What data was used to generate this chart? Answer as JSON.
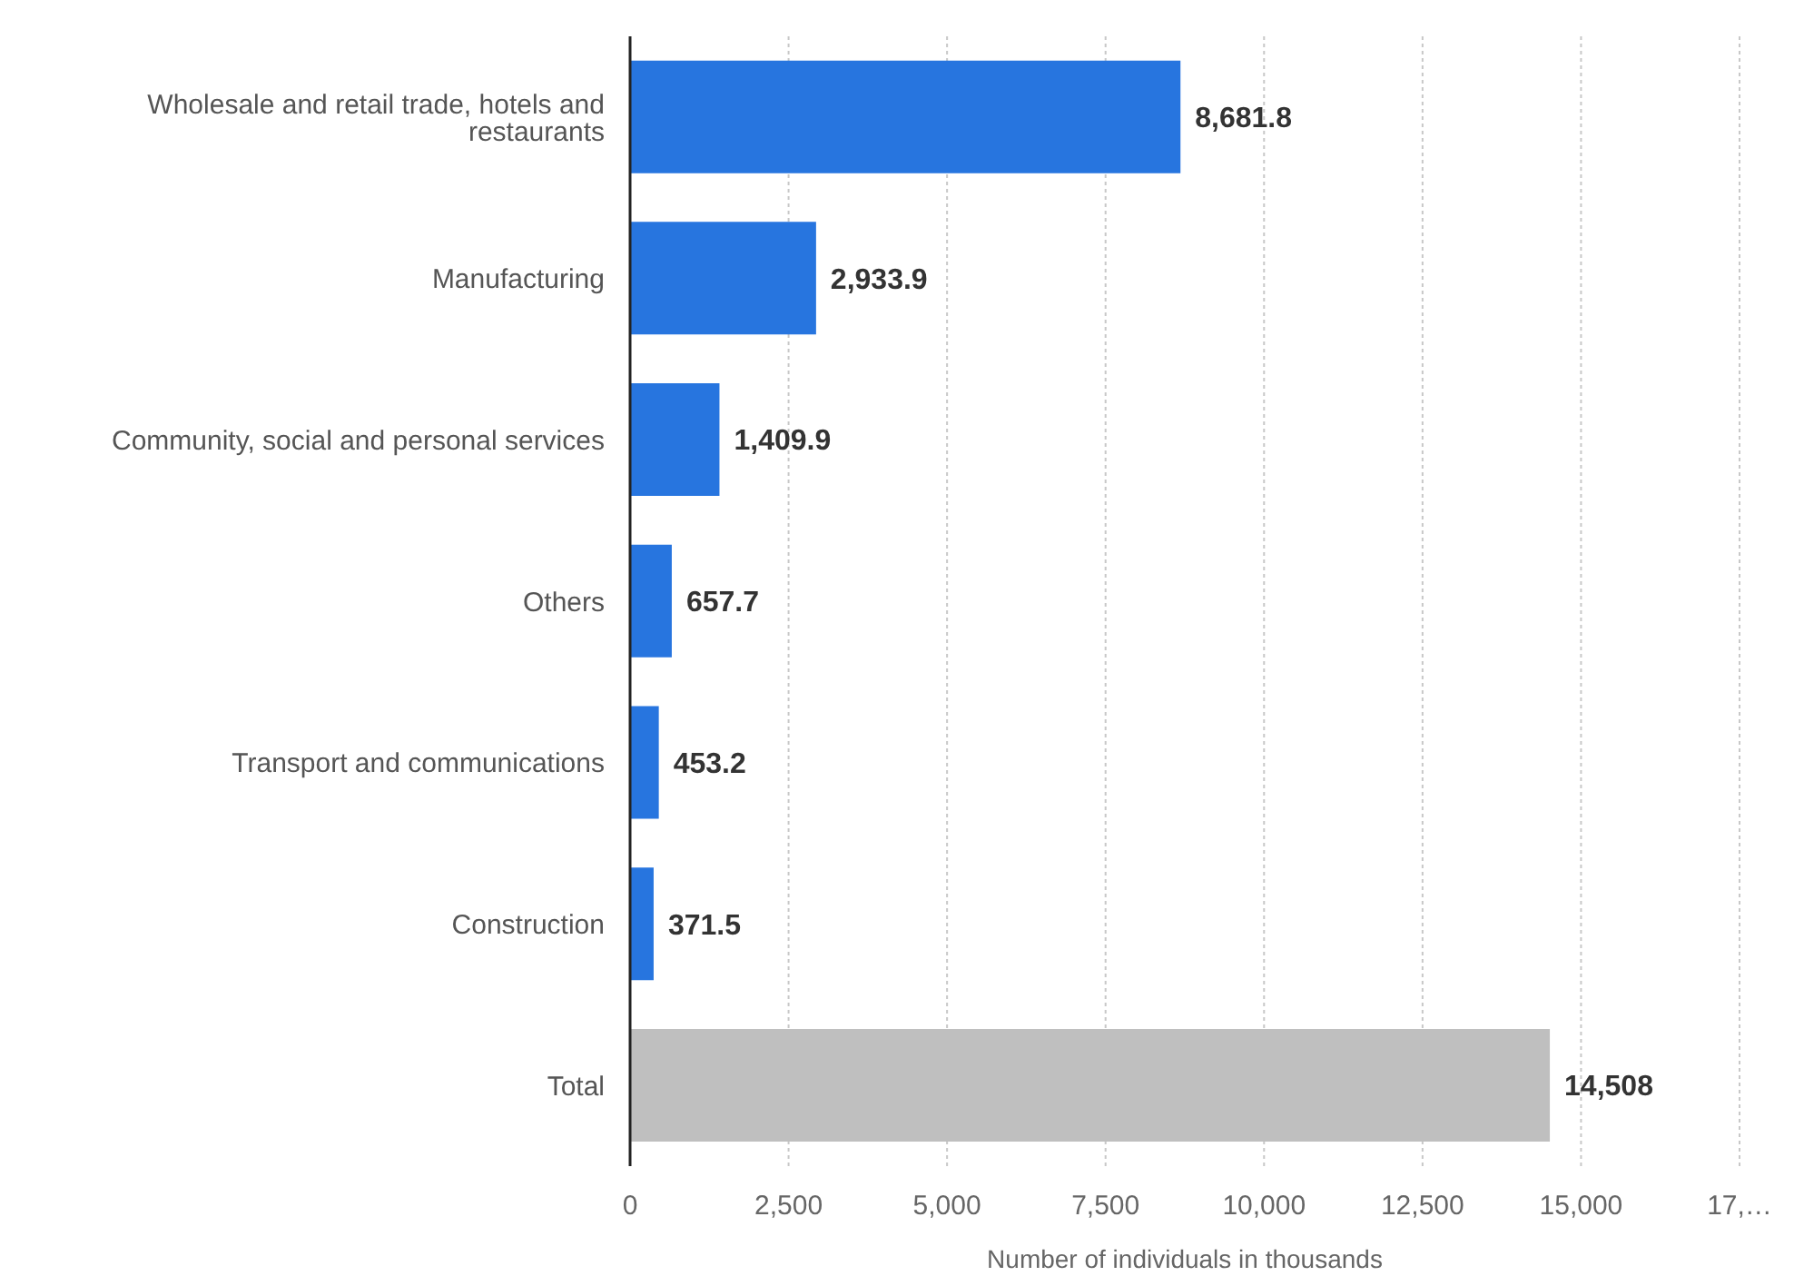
{
  "chart_data": {
    "type": "bar",
    "orientation": "horizontal",
    "xlabel": "Number of individuals in thousands",
    "categories": [
      "Wholesale and retail trade, hotels and restaurants",
      "Manufacturing",
      "Community, social and personal services",
      "Others",
      "Transport and communications",
      "Construction",
      "Total"
    ],
    "values": [
      8681.8,
      2933.9,
      1409.9,
      657.7,
      453.2,
      371.5,
      14508
    ],
    "value_labels": [
      "8,681.8",
      "2,933.9",
      "1,409.9",
      "657.7",
      "453.2",
      "371.5",
      "14,508"
    ],
    "colors": [
      "#2775df",
      "#2775df",
      "#2775df",
      "#2775df",
      "#2775df",
      "#2775df",
      "#bfbfbf"
    ],
    "xlim": [
      0,
      17500
    ],
    "xticks": [
      0,
      {
        "value": 2500,
        "label": "2,500"
      },
      {
        "value": 5000,
        "label": "5,000"
      },
      {
        "value": 7500,
        "label": "7,500"
      },
      {
        "value": 10000,
        "label": "10,000"
      },
      {
        "value": 12500,
        "label": "12,500"
      },
      {
        "value": 15000,
        "label": "15,000"
      },
      {
        "value": 17500,
        "label": "17,…"
      }
    ],
    "grid": "x",
    "legend": false
  }
}
